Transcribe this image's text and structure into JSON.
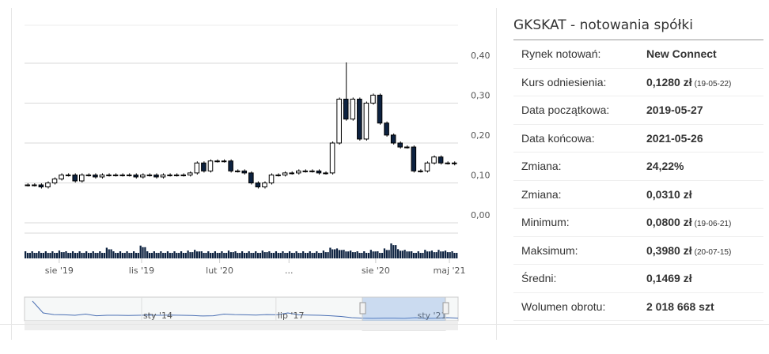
{
  "panel": {
    "title": "GKSKAT - notowania spółki",
    "rows": [
      {
        "label": "Rynek notowań:",
        "value": "New Connect",
        "note": ""
      },
      {
        "label": "Kurs odniesienia:",
        "value": "0,1280 zł",
        "note": "(19-05-22)"
      },
      {
        "label": "Data początkowa:",
        "value": "2019-05-27",
        "note": ""
      },
      {
        "label": "Data końcowa:",
        "value": "2021-05-26",
        "note": ""
      },
      {
        "label": "Zmiana:",
        "value": "24,22%",
        "note": ""
      },
      {
        "label": "Zmiana:",
        "value": "0,0310 zł",
        "note": ""
      },
      {
        "label": "Minimum:",
        "value": "0,0800 zł",
        "note": "(19-06-21)"
      },
      {
        "label": "Maksimum:",
        "value": "0,3980 zł",
        "note": "(20-07-15)"
      },
      {
        "label": "Średni:",
        "value": "0,1469 zł",
        "note": ""
      },
      {
        "label": "Wolumen obrotu:",
        "value": "2 018 668 szt",
        "note": ""
      }
    ]
  },
  "chart_data": {
    "type": "candlestick",
    "ylim": [
      0,
      0.4
    ],
    "yticks": [
      "0,00",
      "0,10",
      "0,20",
      "0,30",
      "0,40"
    ],
    "ytick_values": [
      0,
      0.1,
      0.2,
      0.3,
      0.4
    ],
    "xticks": [
      "sie '19",
      "lis '19",
      "lut '20",
      "...",
      "sie '20",
      "maj '21"
    ],
    "xtick_positions": [
      0.08,
      0.27,
      0.45,
      0.61,
      0.81,
      0.98
    ],
    "close": [
      0.095,
      0.095,
      0.09,
      0.1,
      0.11,
      0.12,
      0.12,
      0.105,
      0.12,
      0.12,
      0.115,
      0.12,
      0.12,
      0.12,
      0.12,
      0.12,
      0.115,
      0.12,
      0.12,
      0.115,
      0.12,
      0.12,
      0.12,
      0.12,
      0.125,
      0.15,
      0.13,
      0.155,
      0.155,
      0.155,
      0.13,
      0.13,
      0.125,
      0.1,
      0.09,
      0.1,
      0.12,
      0.12,
      0.125,
      0.125,
      0.13,
      0.13,
      0.13,
      0.125,
      0.125,
      0.2,
      0.31,
      0.26,
      0.31,
      0.21,
      0.3,
      0.32,
      0.25,
      0.22,
      0.2,
      0.19,
      0.19,
      0.13,
      0.13,
      0.15,
      0.165,
      0.15,
      0.15,
      0.148
    ],
    "peak_high": 0.398,
    "peak_index": 47,
    "volume": [
      1,
      1,
      1,
      1,
      1,
      1.1,
      1,
      1,
      1,
      1,
      1,
      1,
      1.5,
      1,
      1,
      1,
      1,
      1.8,
      1,
      1,
      1,
      1,
      1,
      1,
      1.1,
      1.2,
      1,
      1,
      1,
      1,
      1.1,
      1,
      1,
      1,
      1,
      1.1,
      1,
      1,
      1,
      1,
      1,
      1,
      1,
      1,
      1.1,
      1.5,
      1.4,
      1.2,
      1.1,
      1,
      1,
      1.2,
      1,
      1.4,
      2.1,
      1.3,
      1.2,
      1,
      1,
      1.2,
      1.1,
      1.2,
      1.1,
      1
    ],
    "navigator": {
      "labels": [
        "sty '14",
        "lip '17",
        "sty '21"
      ],
      "series": [
        0.9,
        0.4,
        0.33,
        0.32,
        0.3,
        0.35,
        0.28,
        0.3,
        0.3,
        0.29,
        0.3,
        0.31,
        0.3,
        0.31,
        0.3,
        0.29,
        0.27,
        0.28,
        0.35,
        0.33,
        0.32,
        0.31,
        0.33,
        0.32,
        0.4,
        0.32,
        0.31,
        0.3,
        0.28,
        0.25,
        0.2,
        0.18,
        0.17,
        0.18,
        0.18,
        0.17,
        0.2,
        0.17,
        0.18,
        0.2,
        0.18
      ]
    }
  }
}
